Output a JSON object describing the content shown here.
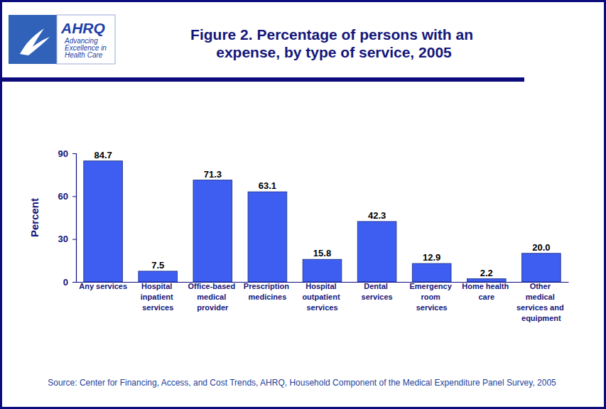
{
  "header": {
    "logo_name": "AHRQ",
    "logo_tagline": "Advancing Excellence in Health Care"
  },
  "chart_data": {
    "type": "bar",
    "title": "Figure 2. Percentage of persons with an expense, by type of service, 2005",
    "y_label": "Percent",
    "categories": [
      "Any services",
      "Hospital inpatient services",
      "Office-based medical provider",
      "Prescription medicines",
      "Hospital outpatient services",
      "Dental services",
      "Emergency room services",
      "Home health care",
      "Other medical services and equipment"
    ],
    "values": [
      84.7,
      7.5,
      71.3,
      63.1,
      15.8,
      42.3,
      12.9,
      2.2,
      20.0
    ],
    "value_labels": [
      "84.7",
      "7.5",
      "71.3",
      "63.1",
      "15.8",
      "42.3",
      "12.9",
      "2.2",
      "20.0"
    ],
    "color": "#3d5ef0",
    "ylim": [
      0,
      90
    ],
    "yticks": [
      0,
      30,
      60,
      90
    ],
    "data_labels": true,
    "source": "Source: Center for Financing, Access, and Cost Trends, AHRQ, Household Component of the Medical Expenditure Panel Survey, 2005"
  }
}
